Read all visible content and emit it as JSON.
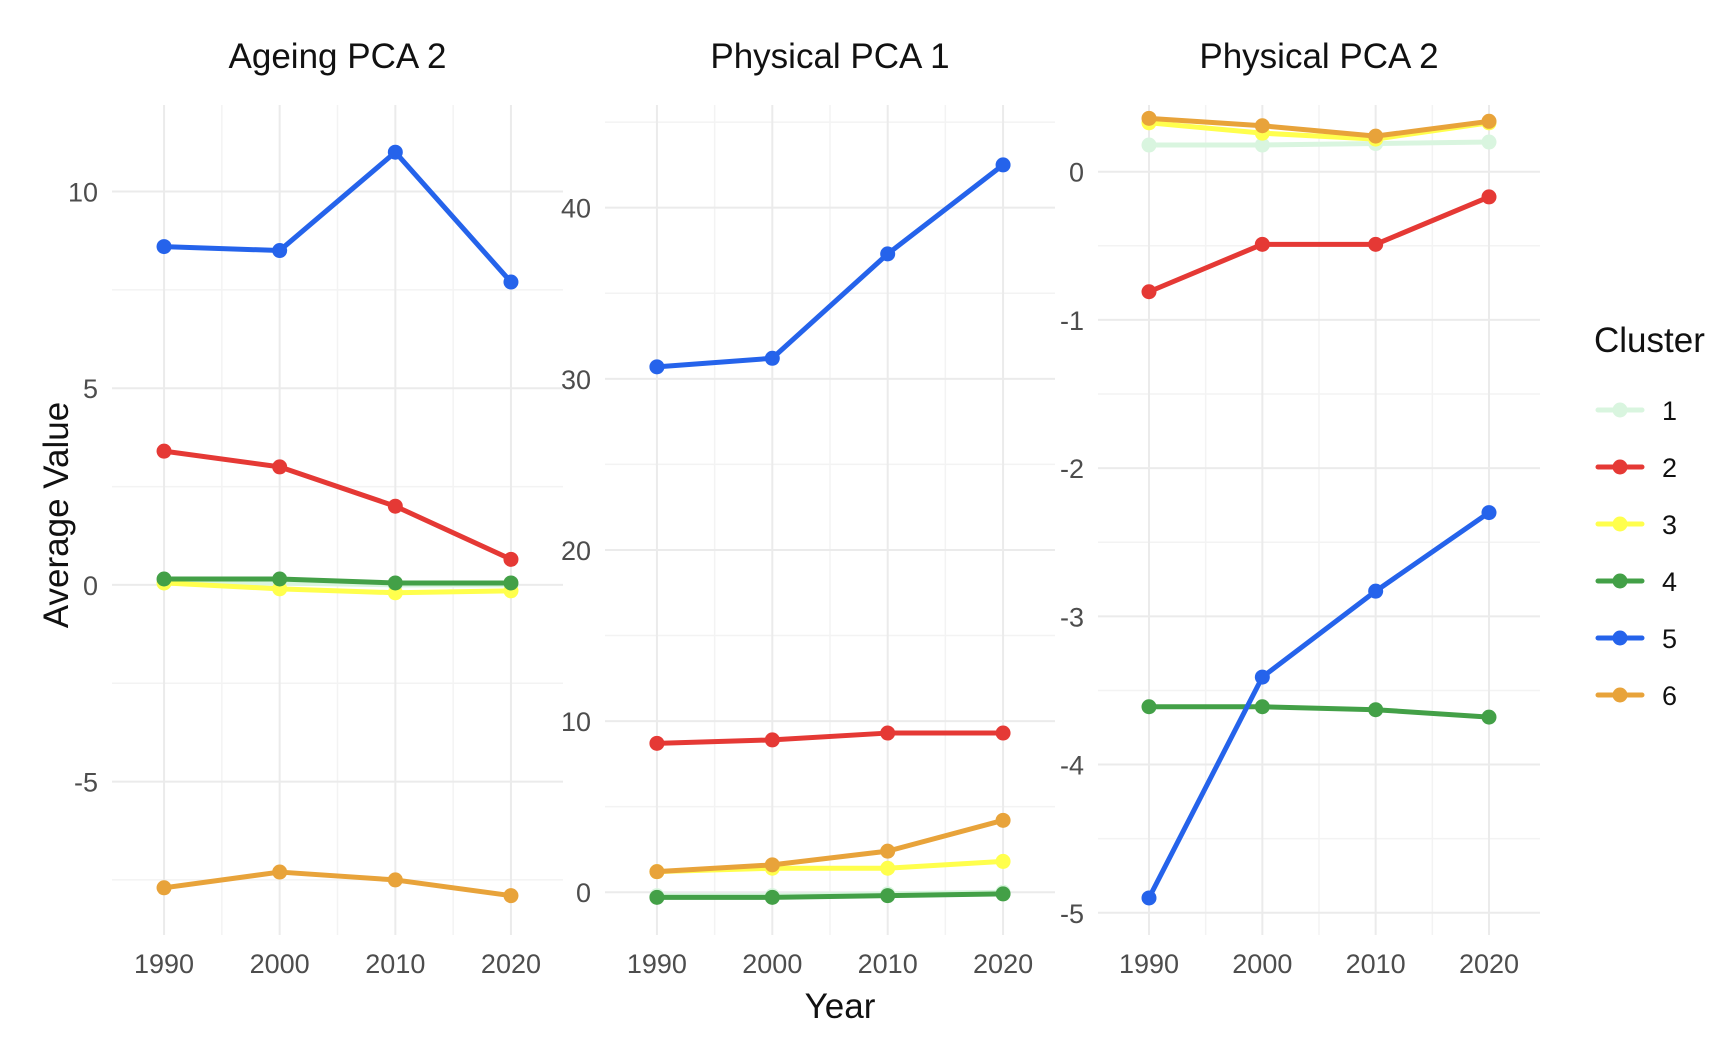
{
  "chart_data": {
    "type": "line",
    "xlabel": "Year",
    "ylabel": "Average Value",
    "x": [
      1990,
      2000,
      2010,
      2020
    ],
    "legend": {
      "title": "Cluster",
      "placement": "right",
      "entries": [
        {
          "name": "1",
          "color": "#d9f5df"
        },
        {
          "name": "2",
          "color": "#e53935"
        },
        {
          "name": "3",
          "color": "#ffff4d"
        },
        {
          "name": "4",
          "color": "#43a047"
        },
        {
          "name": "5",
          "color": "#2563eb"
        },
        {
          "name": "6",
          "color": "#e8a33a"
        }
      ]
    },
    "grid": true,
    "panels": [
      {
        "title": "Ageing PCA 2",
        "ylim": [
          -8.9,
          12.2
        ],
        "yticks": [
          -5,
          0,
          5,
          10
        ],
        "ytick_labels": [
          "-5",
          "0",
          "5",
          "10"
        ],
        "xticks": [
          1990,
          2000,
          2010,
          2020
        ],
        "xtick_labels": [
          "1990",
          "2000",
          "2010",
          "2020"
        ],
        "series": [
          {
            "name": "1",
            "values": [
              0.05,
              0.05,
              0.0,
              0.0
            ]
          },
          {
            "name": "2",
            "values": [
              3.4,
              3.0,
              2.0,
              0.65
            ]
          },
          {
            "name": "3",
            "values": [
              0.05,
              -0.1,
              -0.2,
              -0.15
            ]
          },
          {
            "name": "4",
            "values": [
              0.15,
              0.15,
              0.05,
              0.05
            ]
          },
          {
            "name": "5",
            "values": [
              8.6,
              8.5,
              11.0,
              7.7
            ]
          },
          {
            "name": "6",
            "values": [
              -7.7,
              -7.3,
              -7.5,
              -7.9
            ]
          }
        ]
      },
      {
        "title": "Physical PCA 1",
        "ylim": [
          -2.5,
          46
        ],
        "yticks": [
          0,
          10,
          20,
          30,
          40
        ],
        "ytick_labels": [
          "0",
          "10",
          "20",
          "30",
          "40"
        ],
        "xticks": [
          1990,
          2000,
          2010,
          2020
        ],
        "xtick_labels": [
          "1990",
          "2000",
          "2010",
          "2020"
        ],
        "series": [
          {
            "name": "1",
            "values": [
              -0.2,
              -0.2,
              -0.1,
              0.0
            ]
          },
          {
            "name": "2",
            "values": [
              8.7,
              8.9,
              9.3,
              9.3
            ]
          },
          {
            "name": "3",
            "values": [
              1.2,
              1.4,
              1.4,
              1.8
            ]
          },
          {
            "name": "4",
            "values": [
              -0.3,
              -0.3,
              -0.2,
              -0.1
            ]
          },
          {
            "name": "5",
            "values": [
              30.7,
              31.2,
              37.3,
              42.5
            ]
          },
          {
            "name": "6",
            "values": [
              1.2,
              1.6,
              2.4,
              4.2
            ]
          }
        ]
      },
      {
        "title": "Physical PCA 2",
        "ylim": [
          -5.15,
          0.45
        ],
        "yticks": [
          -5,
          -4,
          -3,
          -2,
          -1,
          0
        ],
        "ytick_labels": [
          "-5",
          "-4",
          "-3",
          "-2",
          "-1",
          "0"
        ],
        "xticks": [
          1990,
          2000,
          2010,
          2020
        ],
        "xtick_labels": [
          "1990",
          "2000",
          "2010",
          "2020"
        ],
        "series": [
          {
            "name": "1",
            "values": [
              0.18,
              0.18,
              0.19,
              0.2
            ]
          },
          {
            "name": "2",
            "values": [
              -0.81,
              -0.49,
              -0.49,
              -0.17
            ]
          },
          {
            "name": "3",
            "values": [
              0.33,
              0.26,
              0.22,
              0.33
            ]
          },
          {
            "name": "4",
            "values": [
              -3.61,
              -3.61,
              -3.63,
              -3.68
            ]
          },
          {
            "name": "5",
            "values": [
              -4.9,
              -3.41,
              -2.83,
              -2.3
            ]
          },
          {
            "name": "6",
            "values": [
              0.36,
              0.31,
              0.24,
              0.34
            ]
          }
        ]
      }
    ]
  }
}
